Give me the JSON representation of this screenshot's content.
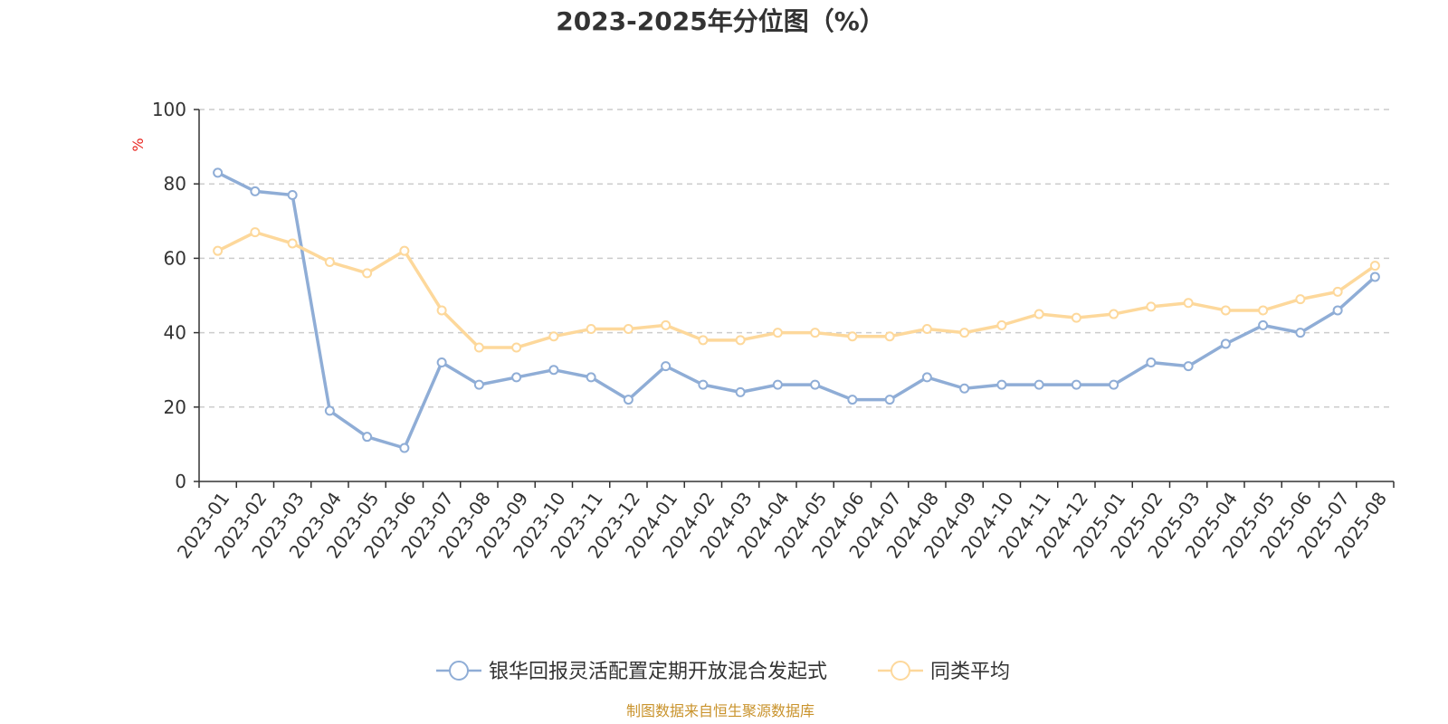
{
  "chart_data": {
    "type": "line",
    "title": "2023-2025年分位图（%）",
    "ylabel": "%",
    "xlabel": "",
    "ylim": [
      0,
      100
    ],
    "y_ticks": [
      "0",
      "20",
      "40",
      "60",
      "80",
      "100"
    ],
    "grid": "horizontal dashed",
    "legend_position": "bottom",
    "categories": [
      "2023-01",
      "2023-02",
      "2023-03",
      "2023-04",
      "2023-05",
      "2023-06",
      "2023-07",
      "2023-08",
      "2023-09",
      "2023-10",
      "2023-11",
      "2023-12",
      "2024-01",
      "2024-02",
      "2024-03",
      "2024-04",
      "2024-05",
      "2024-06",
      "2024-07",
      "2024-08",
      "2024-09",
      "2024-10",
      "2024-11",
      "2024-12",
      "2025-01",
      "2025-02",
      "2025-03",
      "2025-04",
      "2025-05",
      "2025-06",
      "2025-07",
      "2025-08"
    ],
    "series": [
      {
        "name": "银华回报灵活配置定期开放混合发起式",
        "color": "#8fadd6",
        "values": [
          83,
          78,
          77,
          19,
          12,
          9,
          32,
          26,
          28,
          30,
          28,
          22,
          31,
          26,
          24,
          26,
          26,
          22,
          22,
          28,
          25,
          26,
          26,
          26,
          26,
          32,
          31,
          37,
          42,
          40,
          46,
          55
        ]
      },
      {
        "name": "同类平均",
        "color": "#fdd89b",
        "values": [
          62,
          67,
          64,
          59,
          56,
          62,
          46,
          36,
          36,
          39,
          41,
          41,
          42,
          38,
          38,
          40,
          40,
          39,
          39,
          41,
          40,
          42,
          45,
          44,
          45,
          47,
          48,
          46,
          46,
          49,
          51,
          58
        ]
      }
    ]
  },
  "source_note": "制图数据来自恒生聚源数据库"
}
